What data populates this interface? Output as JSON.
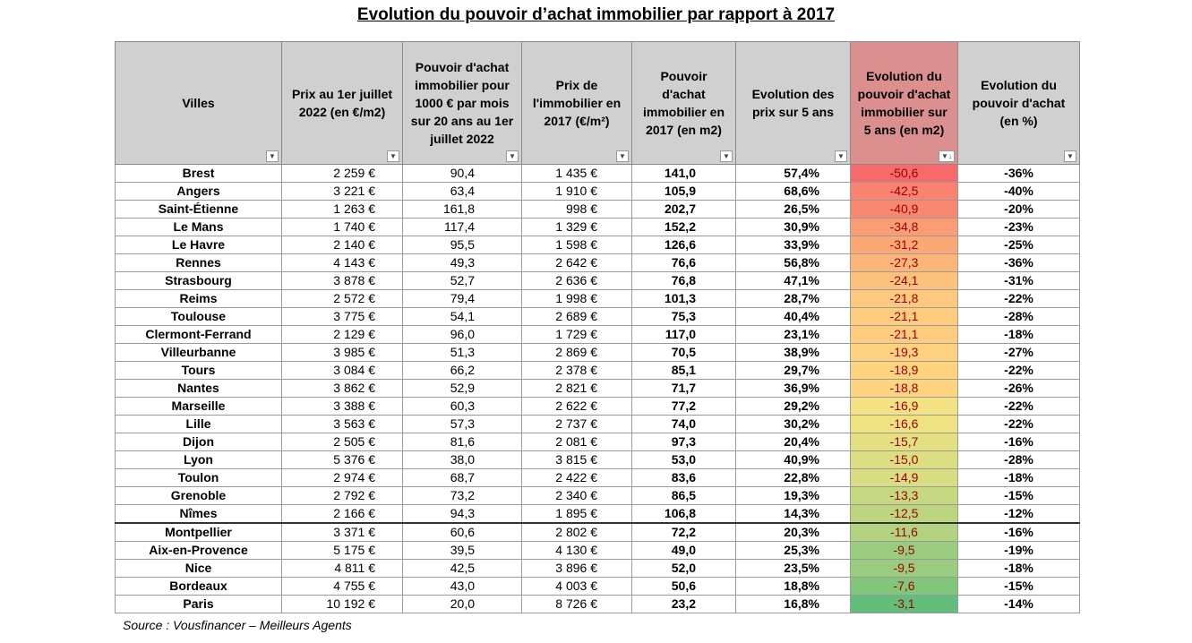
{
  "title": "Evolution du pouvoir d’achat immobilier par rapport à 2017",
  "headers": {
    "city": "Villes",
    "price_2022": "Prix au 1er juillet 2022 (en €/m2)",
    "power_2022": "Pouvoir d'achat immobilier pour 1000 € par mois sur 20 ans au 1er juillet 2022",
    "price_2017": "Prix de l'immobilier en 2017 (€/m²)",
    "power_2017": "Pouvoir d'achat immobilier en 2017 (en m2)",
    "price_evo": "Evolution des prix sur 5 ans",
    "power_evo_m2": "Evolution du pouvoir d'achat immobilier sur 5 ans (en m2)",
    "power_evo_pct": "Evolution du pouvoir d'achat (en %)"
  },
  "rows": [
    {
      "city": "Brest",
      "price_2022": "2 259 €",
      "power_2022": "90,4",
      "price_2017": "1 435 €",
      "power_2017": "141,0",
      "price_evo": "57,4%",
      "power_evo_m2": "-50,6",
      "power_evo_pct": "-36%",
      "color": "#f8696b"
    },
    {
      "city": "Angers",
      "price_2022": "3 221 €",
      "power_2022": "63,4",
      "price_2017": "1 910 €",
      "power_2017": "105,9",
      "price_evo": "68,6%",
      "power_evo_m2": "-42,5",
      "power_evo_pct": "-40%",
      "color": "#f98370"
    },
    {
      "city": "Saint-Étienne",
      "price_2022": "1 263 €",
      "power_2022": "161,8",
      "price_2017": "998 €",
      "power_2017": "202,7",
      "price_evo": "26,5%",
      "power_evo_m2": "-40,9",
      "power_evo_pct": "-20%",
      "color": "#f98870"
    },
    {
      "city": "Le Mans",
      "price_2022": "1 740 €",
      "power_2022": "117,4",
      "price_2017": "1 329 €",
      "power_2017": "152,2",
      "price_evo": "30,9%",
      "power_evo_m2": "-34,8",
      "power_evo_pct": "-23%",
      "color": "#fa9d75"
    },
    {
      "city": "Le Havre",
      "price_2022": "2 140 €",
      "power_2022": "95,5",
      "price_2017": "1 598 €",
      "power_2017": "126,6",
      "price_evo": "33,9%",
      "power_evo_m2": "-31,2",
      "power_evo_pct": "-25%",
      "color": "#fba877"
    },
    {
      "city": "Rennes",
      "price_2022": "4 143 €",
      "power_2022": "49,3",
      "price_2017": "2 642 €",
      "power_2017": "76,6",
      "price_evo": "56,8%",
      "power_evo_m2": "-27,3",
      "power_evo_pct": "-36%",
      "color": "#fcb67a"
    },
    {
      "city": "Strasbourg",
      "price_2022": "3 878 €",
      "power_2022": "52,7",
      "price_2017": "2 636 €",
      "power_2017": "76,8",
      "price_evo": "47,1%",
      "power_evo_m2": "-24,1",
      "power_evo_pct": "-31%",
      "color": "#fcc17c"
    },
    {
      "city": "Reims",
      "price_2022": "2 572 €",
      "power_2022": "79,4",
      "price_2017": "1 998 €",
      "power_2017": "101,3",
      "price_evo": "28,7%",
      "power_evo_m2": "-21,8",
      "power_evo_pct": "-22%",
      "color": "#fdc97e"
    },
    {
      "city": "Toulouse",
      "price_2022": "3 775 €",
      "power_2022": "54,1",
      "price_2017": "2 689 €",
      "power_2017": "75,3",
      "price_evo": "40,4%",
      "power_evo_m2": "-21,1",
      "power_evo_pct": "-28%",
      "color": "#fdcc7e"
    },
    {
      "city": "Clermont-Ferrand",
      "price_2022": "2 129 €",
      "power_2022": "96,0",
      "price_2017": "1 729 €",
      "power_2017": "117,0",
      "price_evo": "23,1%",
      "power_evo_m2": "-21,1",
      "power_evo_pct": "-18%",
      "color": "#fdcc7e"
    },
    {
      "city": "Villeurbanne",
      "price_2022": "3 985 €",
      "power_2022": "51,3",
      "price_2017": "2 869 €",
      "power_2017": "70,5",
      "price_evo": "38,9%",
      "power_evo_m2": "-19,3",
      "power_evo_pct": "-27%",
      "color": "#fed280"
    },
    {
      "city": "Tours",
      "price_2022": "3 084 €",
      "power_2022": "66,2",
      "price_2017": "2 378 €",
      "power_2017": "85,1",
      "price_evo": "29,7%",
      "power_evo_m2": "-18,9",
      "power_evo_pct": "-22%",
      "color": "#fed480"
    },
    {
      "city": "Nantes",
      "price_2022": "3 862 €",
      "power_2022": "52,9",
      "price_2017": "2 821 €",
      "power_2017": "71,7",
      "price_evo": "36,9%",
      "power_evo_m2": "-18,8",
      "power_evo_pct": "-26%",
      "color": "#fed480"
    },
    {
      "city": "Marseille",
      "price_2022": "3 388 €",
      "power_2022": "60,3",
      "price_2017": "2 622 €",
      "power_2017": "77,2",
      "price_evo": "29,2%",
      "power_evo_m2": "-16,9",
      "power_evo_pct": "-22%",
      "color": "#f2e283"
    },
    {
      "city": "Lille",
      "price_2022": "3 563 €",
      "power_2022": "57,3",
      "price_2017": "2 737 €",
      "power_2017": "74,0",
      "price_evo": "30,2%",
      "power_evo_m2": "-16,6",
      "power_evo_pct": "-22%",
      "color": "#eee283"
    },
    {
      "city": "Dijon",
      "price_2022": "2 505 €",
      "power_2022": "81,6",
      "price_2017": "2 081 €",
      "power_2017": "97,3",
      "price_evo": "20,4%",
      "power_evo_m2": "-15,7",
      "power_evo_pct": "-16%",
      "color": "#e3e082"
    },
    {
      "city": "Lyon",
      "price_2022": "5 376 €",
      "power_2022": "38,0",
      "price_2017": "3 815 €",
      "power_2017": "53,0",
      "price_evo": "40,9%",
      "power_evo_m2": "-15,0",
      "power_evo_pct": "-28%",
      "color": "#dbde81"
    },
    {
      "city": "Toulon",
      "price_2022": "2 974 €",
      "power_2022": "68,7",
      "price_2017": "2 422 €",
      "power_2017": "83,6",
      "price_evo": "22,8%",
      "power_evo_m2": "-14,9",
      "power_evo_pct": "-18%",
      "color": "#d9dd81"
    },
    {
      "city": "Grenoble",
      "price_2022": "2 792 €",
      "power_2022": "73,2",
      "price_2017": "2 340 €",
      "power_2017": "86,5",
      "price_evo": "19,3%",
      "power_evo_m2": "-13,3",
      "power_evo_pct": "-15%",
      "color": "#c6d980"
    },
    {
      "city": "Nîmes",
      "price_2022": "2 166 €",
      "power_2022": "94,3",
      "price_2017": "1 895 €",
      "power_2017": "106,8",
      "price_evo": "14,3%",
      "power_evo_m2": "-12,5",
      "power_evo_pct": "-12%",
      "color": "#bcd67f"
    },
    {
      "city": "Montpellier",
      "price_2022": "3 371 €",
      "power_2022": "60,6",
      "price_2017": "2 802 €",
      "power_2017": "72,2",
      "price_evo": "20,3%",
      "power_evo_m2": "-11,6",
      "power_evo_pct": "-16%",
      "color": "#b2d37f"
    },
    {
      "city": "Aix-en-Provence",
      "price_2022": "5 175 €",
      "power_2022": "39,5",
      "price_2017": "4 130 €",
      "power_2017": "49,0",
      "price_evo": "25,3%",
      "power_evo_m2": "-9,5",
      "power_evo_pct": "-19%",
      "color": "#99cc7e"
    },
    {
      "city": "Nice",
      "price_2022": "4 811 €",
      "power_2022": "42,5",
      "price_2017": "3 896 €",
      "power_2017": "52,0",
      "price_evo": "23,5%",
      "power_evo_m2": "-9,5",
      "power_evo_pct": "-18%",
      "color": "#99cc7e"
    },
    {
      "city": "Bordeaux",
      "price_2022": "4 755 €",
      "power_2022": "43,0",
      "price_2017": "4 003 €",
      "power_2017": "50,6",
      "price_evo": "18,8%",
      "power_evo_m2": "-7,6",
      "power_evo_pct": "-15%",
      "color": "#82c67c"
    },
    {
      "city": "Paris",
      "price_2022": "10 192 €",
      "power_2022": "20,0",
      "price_2017": "8 726 €",
      "power_2017": "23,2",
      "price_evo": "16,8%",
      "power_evo_m2": "-3,1",
      "power_evo_pct": "-14%",
      "color": "#63be7b"
    }
  ],
  "source": "Source : Vousfinancer – Meilleurs Agents"
}
